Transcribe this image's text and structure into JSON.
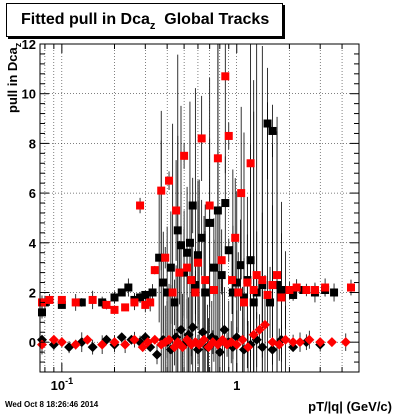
{
  "title": {
    "main": "Fitted pull in Dca",
    "sub": "z",
    "rest": "  Global Tracks"
  },
  "footer": "Wed Oct  8 18:26:46 2014",
  "colors": {
    "series_black": "#000000",
    "series_red": "#ff0000",
    "axis": "#000000"
  },
  "chart_data": {
    "type": "scatter",
    "xlabel": "pT/|q| (GeV/c)",
    "ylabel": "pull in Dca",
    "ylabel_sub": "z",
    "x_scale": "log",
    "xlim": [
      0.075,
      5.0
    ],
    "ylim": [
      -1.2,
      12
    ],
    "grid": true,
    "y_ticks": [
      0,
      2,
      4,
      6,
      8,
      10,
      12
    ],
    "x_tick_labels": [
      {
        "value": 0.1,
        "base": "10",
        "exp": "-1"
      },
      {
        "value": 1,
        "base": "1",
        "exp": ""
      }
    ],
    "series": [
      {
        "marker": "square",
        "color": "#000000",
        "points": [
          [
            0.077,
            1.2
          ],
          [
            0.08,
            1.6
          ],
          [
            0.1,
            1.5
          ],
          [
            0.13,
            1.6
          ],
          [
            0.17,
            1.6
          ],
          [
            0.2,
            1.8
          ],
          [
            0.22,
            2.0
          ],
          [
            0.24,
            2.2
          ],
          [
            0.26,
            1.7
          ],
          [
            0.28,
            1.8
          ],
          [
            0.3,
            1.9
          ],
          [
            0.33,
            2.0
          ],
          [
            0.36,
            3.4
          ],
          [
            0.38,
            2.4
          ],
          [
            0.4,
            2.0
          ],
          [
            0.42,
            3.0
          ],
          [
            0.44,
            1.6
          ],
          [
            0.46,
            4.5
          ],
          [
            0.48,
            3.9
          ],
          [
            0.5,
            2.8
          ],
          [
            0.52,
            3.6
          ],
          [
            0.54,
            4.0
          ],
          [
            0.56,
            5.5
          ],
          [
            0.58,
            2.3
          ],
          [
            0.6,
            3.5
          ],
          [
            0.63,
            4.2
          ],
          [
            0.66,
            2.0
          ],
          [
            0.7,
            4.8
          ],
          [
            0.74,
            3.0
          ],
          [
            0.78,
            5.3
          ],
          [
            0.82,
            2.7
          ],
          [
            0.86,
            5.6
          ],
          [
            0.9,
            3.7
          ],
          [
            0.95,
            2.0
          ],
          [
            1.0,
            2.4
          ],
          [
            1.05,
            3.1
          ],
          [
            1.1,
            1.8
          ],
          [
            1.15,
            2.5
          ],
          [
            1.2,
            3.3
          ],
          [
            1.25,
            1.6
          ],
          [
            1.3,
            2.0
          ],
          [
            1.4,
            2.3
          ],
          [
            1.5,
            8.8
          ],
          [
            1.55,
            1.6
          ],
          [
            1.6,
            8.5
          ],
          [
            1.7,
            2.3
          ],
          [
            1.8,
            2.0
          ],
          [
            1.9,
            2.1
          ],
          [
            2.1,
            1.9
          ],
          [
            2.4,
            2.1
          ],
          [
            2.8,
            2.0
          ],
          [
            3.2,
            2.1
          ],
          [
            3.6,
            2.0
          ]
        ]
      },
      {
        "marker": "square",
        "color": "#ff0000",
        "points": [
          [
            0.077,
            1.6
          ],
          [
            0.085,
            1.7
          ],
          [
            0.1,
            1.7
          ],
          [
            0.12,
            1.6
          ],
          [
            0.15,
            1.7
          ],
          [
            0.18,
            1.5
          ],
          [
            0.2,
            1.3
          ],
          [
            0.23,
            1.4
          ],
          [
            0.26,
            1.6
          ],
          [
            0.28,
            5.5
          ],
          [
            0.3,
            1.5
          ],
          [
            0.32,
            1.6
          ],
          [
            0.34,
            2.9
          ],
          [
            0.37,
            6.1
          ],
          [
            0.39,
            3.4
          ],
          [
            0.41,
            6.5
          ],
          [
            0.43,
            2.0
          ],
          [
            0.45,
            5.3
          ],
          [
            0.47,
            2.8
          ],
          [
            0.5,
            7.5
          ],
          [
            0.52,
            3.0
          ],
          [
            0.55,
            2.5
          ],
          [
            0.58,
            2.0
          ],
          [
            0.6,
            3.2
          ],
          [
            0.63,
            8.2
          ],
          [
            0.66,
            2.5
          ],
          [
            0.7,
            5.5
          ],
          [
            0.74,
            2.1
          ],
          [
            0.78,
            7.4
          ],
          [
            0.82,
            3.3
          ],
          [
            0.86,
            10.7
          ],
          [
            0.9,
            8.3
          ],
          [
            0.94,
            2.5
          ],
          [
            0.98,
            4.2
          ],
          [
            1.02,
            2.0
          ],
          [
            1.06,
            6.0
          ],
          [
            1.1,
            1.6
          ],
          [
            1.15,
            2.4
          ],
          [
            1.2,
            7.2
          ],
          [
            1.25,
            2.1
          ],
          [
            1.3,
            2.7
          ],
          [
            1.4,
            2.5
          ],
          [
            1.5,
            1.9
          ],
          [
            1.6,
            2.3
          ],
          [
            1.7,
            2.7
          ],
          [
            1.8,
            1.8
          ],
          [
            2.0,
            2.1
          ],
          [
            2.2,
            2.2
          ],
          [
            2.5,
            2.1
          ],
          [
            2.8,
            2.1
          ],
          [
            3.2,
            2.2
          ],
          [
            4.5,
            2.2
          ]
        ]
      },
      {
        "marker": "diamond",
        "color": "#000000",
        "points": [
          [
            0.077,
            0.1
          ],
          [
            0.09,
            -0.1
          ],
          [
            0.11,
            -0.2
          ],
          [
            0.13,
            0.0
          ],
          [
            0.15,
            -0.2
          ],
          [
            0.18,
            0.1
          ],
          [
            0.2,
            -0.1
          ],
          [
            0.22,
            0.2
          ],
          [
            0.25,
            0.1
          ],
          [
            0.28,
            0.0
          ],
          [
            0.3,
            0.2
          ],
          [
            0.32,
            -0.2
          ],
          [
            0.35,
            -0.5
          ],
          [
            0.38,
            0.1
          ],
          [
            0.4,
            0.0
          ],
          [
            0.42,
            -0.3
          ],
          [
            0.45,
            0.2
          ],
          [
            0.48,
            0.5
          ],
          [
            0.5,
            -0.1
          ],
          [
            0.53,
            0.3
          ],
          [
            0.56,
            0.6
          ],
          [
            0.6,
            -0.3
          ],
          [
            0.64,
            0.4
          ],
          [
            0.68,
            -0.2
          ],
          [
            0.72,
            0.2
          ],
          [
            0.76,
            0.1
          ],
          [
            0.8,
            -0.4
          ],
          [
            0.85,
            0.5
          ],
          [
            0.9,
            0.0
          ],
          [
            0.95,
            -0.2
          ],
          [
            1.0,
            0.2
          ],
          [
            1.1,
            -0.3
          ],
          [
            1.2,
            -0.1
          ],
          [
            1.3,
            0.1
          ],
          [
            1.4,
            -0.2
          ],
          [
            1.6,
            -0.3
          ],
          [
            1.8,
            0.1
          ],
          [
            2.1,
            -0.2
          ],
          [
            2.5,
            0.0
          ],
          [
            3.0,
            -0.1
          ]
        ]
      },
      {
        "marker": "diamond",
        "color": "#ff0000",
        "points": [
          [
            0.077,
            -0.1
          ],
          [
            0.09,
            0.1
          ],
          [
            0.1,
            0.0
          ],
          [
            0.12,
            -0.1
          ],
          [
            0.14,
            0.1
          ],
          [
            0.17,
            -0.1
          ],
          [
            0.2,
            0.0
          ],
          [
            0.23,
            -0.1
          ],
          [
            0.26,
            0.1
          ],
          [
            0.29,
            -0.2
          ],
          [
            0.31,
            0.0
          ],
          [
            0.34,
            0.1
          ],
          [
            0.37,
            -0.1
          ],
          [
            0.39,
            0.0
          ],
          [
            0.41,
            0.1
          ],
          [
            0.44,
            -0.2
          ],
          [
            0.46,
            0.0
          ],
          [
            0.49,
            -0.2
          ],
          [
            0.52,
            0.1
          ],
          [
            0.55,
            -0.1
          ],
          [
            0.58,
            0.0
          ],
          [
            0.61,
            -0.1
          ],
          [
            0.65,
            0.1
          ],
          [
            0.69,
            -0.2
          ],
          [
            0.73,
            0.0
          ],
          [
            0.78,
            -0.1
          ],
          [
            0.83,
            0.1
          ],
          [
            0.88,
            -0.1
          ],
          [
            0.93,
            0.0
          ],
          [
            1.0,
            -0.1
          ],
          [
            1.08,
            0.1
          ],
          [
            1.16,
            -0.2
          ],
          [
            1.25,
            0.3
          ],
          [
            1.35,
            0.5
          ],
          [
            1.45,
            0.7
          ],
          [
            1.6,
            0.0
          ],
          [
            1.75,
            -0.1
          ],
          [
            1.9,
            0.1
          ],
          [
            2.1,
            0.0
          ],
          [
            2.3,
            0.0
          ],
          [
            2.6,
            0.1
          ],
          [
            3.0,
            0.0
          ],
          [
            3.5,
            0.0
          ],
          [
            4.2,
            0.0
          ]
        ]
      }
    ]
  }
}
